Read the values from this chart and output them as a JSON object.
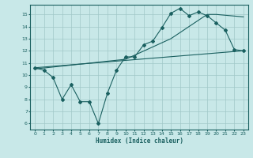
{
  "xlabel": "Humidex (Indice chaleur)",
  "ylabel": "",
  "xlim": [
    -0.5,
    23.5
  ],
  "ylim": [
    5.5,
    15.8
  ],
  "xticks": [
    0,
    1,
    2,
    3,
    4,
    5,
    6,
    7,
    8,
    9,
    10,
    11,
    12,
    13,
    14,
    15,
    16,
    17,
    18,
    19,
    20,
    21,
    22,
    23
  ],
  "yticks": [
    6,
    7,
    8,
    9,
    10,
    11,
    12,
    13,
    14,
    15
  ],
  "background_color": "#c8e8e8",
  "grid_color": "#a0c8c8",
  "line_color": "#1a6060",
  "line1_x": [
    0,
    1,
    2,
    3,
    4,
    5,
    6,
    7,
    8,
    9,
    10,
    11,
    12,
    13,
    14,
    15,
    16,
    17,
    18,
    19,
    20,
    21,
    22,
    23
  ],
  "line1_y": [
    10.6,
    10.4,
    9.8,
    8.0,
    9.2,
    7.8,
    7.8,
    6.0,
    8.5,
    10.4,
    11.5,
    11.5,
    12.5,
    12.8,
    13.9,
    15.1,
    15.5,
    14.9,
    15.2,
    14.9,
    14.3,
    13.7,
    12.1,
    12.0
  ],
  "line2_x": [
    0,
    23
  ],
  "line2_y": [
    10.6,
    12.0
  ],
  "line3_x": [
    0,
    10,
    15,
    19,
    20,
    23
  ],
  "line3_y": [
    10.5,
    11.3,
    13.0,
    15.0,
    15.0,
    14.8
  ]
}
